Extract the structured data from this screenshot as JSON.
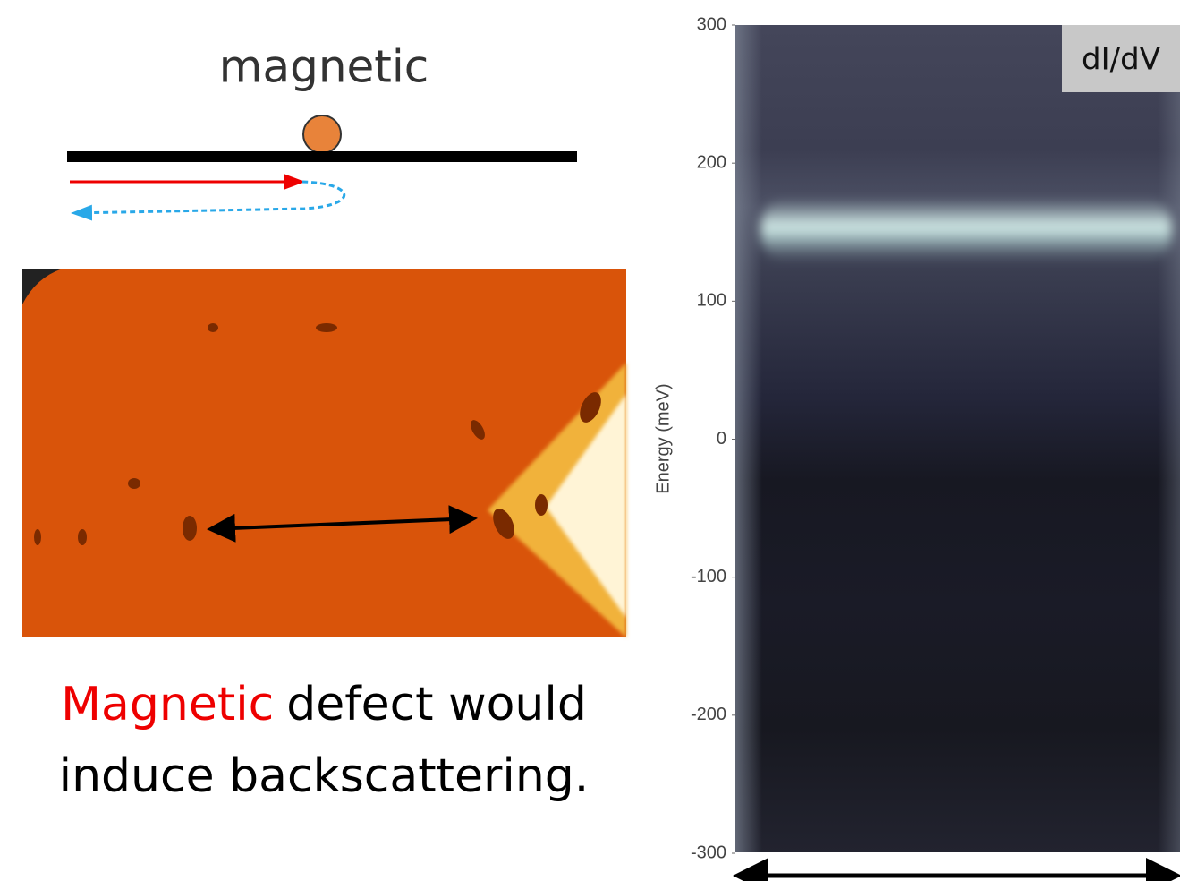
{
  "diagram": {
    "label": "magnetic"
  },
  "caption": {
    "highlight": "Magnetic",
    "line1_rest": "defect would",
    "line2": "induce backscattering."
  },
  "spectrum": {
    "label": "dI/dV",
    "ylabel": "Energy (meV)",
    "ylim": [
      -300,
      300
    ],
    "yticks": [
      -300,
      -200,
      -100,
      0,
      100,
      200,
      300
    ]
  }
}
